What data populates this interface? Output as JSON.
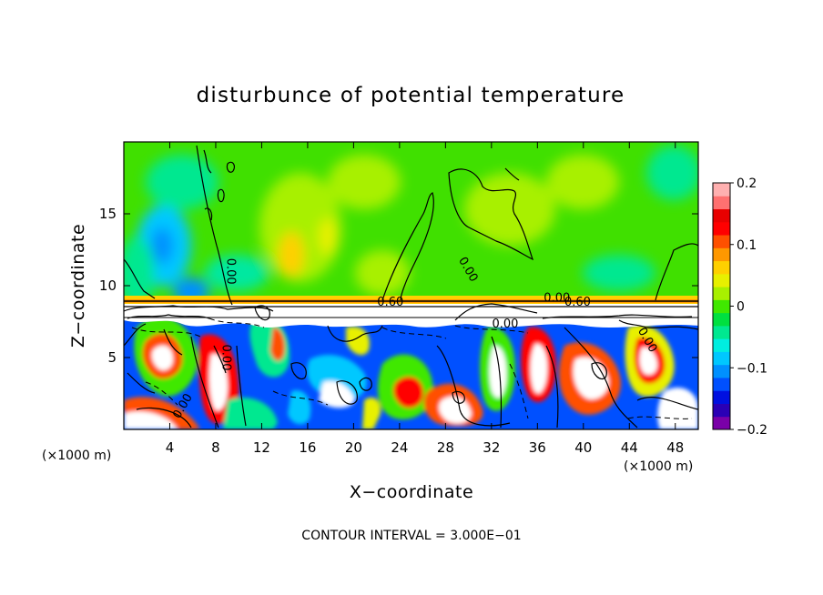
{
  "chart_data": {
    "type": "heatmap",
    "title": "disturbunce of potential temperature",
    "xlabel": "X−coordinate",
    "ylabel": "Z−coordinate",
    "x_unit_label": "(×1000 m)",
    "z_unit_label": "(×1000 m)",
    "xlim": [
      0,
      50
    ],
    "ylim": [
      0,
      20
    ],
    "x_ticks": [
      4,
      8,
      12,
      16,
      20,
      24,
      28,
      32,
      36,
      40,
      44,
      48
    ],
    "x_tick_labels": [
      "4",
      "8",
      "12",
      "16",
      "20",
      "24",
      "28",
      "32",
      "36",
      "40",
      "44",
      "48"
    ],
    "y_ticks": [
      5,
      10,
      15
    ],
    "y_tick_labels": [
      "5",
      "10",
      "15"
    ],
    "colorbar": {
      "range": [
        -0.2,
        0.2
      ],
      "ticks": [
        0.2,
        0.1,
        0,
        -0.1,
        -0.2
      ],
      "tick_labels": [
        "0.2",
        "0.1",
        "0",
        "−0.1",
        "−0.2"
      ],
      "colors": [
        "#7a00a8",
        "#2a00b5",
        "#0010e0",
        "#0050ff",
        "#0090ff",
        "#00c8ff",
        "#00eee0",
        "#00e890",
        "#00e040",
        "#40e800",
        "#a8f000",
        "#e8f000",
        "#ffd000",
        "#ff9800",
        "#ff5000",
        "#ff0000",
        "#e80000",
        "#ff7070",
        "#ffb0b0"
      ]
    },
    "contour_labels": [
      {
        "text": "0.00",
        "x": 9.0,
        "z": 11.0,
        "rotation": 90
      },
      {
        "text": "0.00",
        "x": 8.6,
        "z": 5.0,
        "rotation": 90
      },
      {
        "text": "0.00",
        "x": 5.4,
        "z": 1.5,
        "rotation": -60
      },
      {
        "text": "0.00",
        "x": 29.7,
        "z": 11.0,
        "rotation": 60
      },
      {
        "text": "0.00",
        "x": 37.7,
        "z": 8.9,
        "rotation": 0
      },
      {
        "text": "0.60",
        "x": 23.2,
        "z": 8.6,
        "rotation": 0
      },
      {
        "text": "0.60",
        "x": 39.5,
        "z": 8.6,
        "rotation": 0
      },
      {
        "text": "0.00",
        "x": 33.2,
        "z": 7.1,
        "rotation": 0
      },
      {
        "text": "0.00",
        "x": 45.3,
        "z": 6.1,
        "rotation": 60
      }
    ],
    "footer": "CONTOUR INTERVAL = 3.000E−01"
  }
}
